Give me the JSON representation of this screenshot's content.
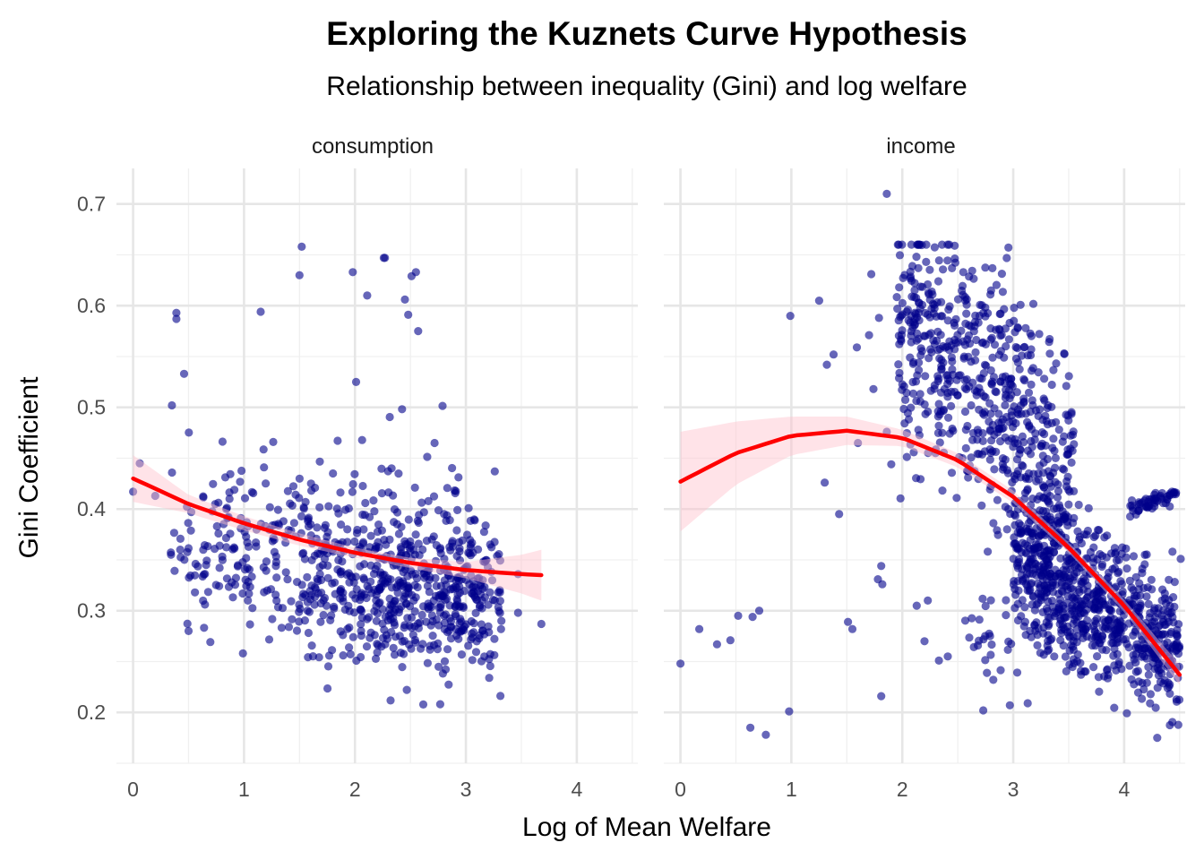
{
  "chart_data": {
    "type": "scatter",
    "title": "Exploring the Kuznets Curve Hypothesis",
    "subtitle": "Relationship between inequality (Gini) and log welfare",
    "xlabel": "Log of Mean Welfare",
    "ylabel": "Gini Coefficient",
    "ylim": [
      0.15,
      0.735
    ],
    "y_ticks": [
      0.2,
      0.3,
      0.4,
      0.5,
      0.6,
      0.7
    ],
    "y_tick_labels": [
      "0.2",
      "0.3",
      "0.4",
      "0.5",
      "0.6",
      "0.7"
    ],
    "grid": true,
    "legend": "none",
    "point_color": "#00008B",
    "point_opacity": 0.6,
    "trend_color": "#FF0000",
    "ribbon_color": "#FFC0CB",
    "panels": [
      {
        "label": "consumption",
        "xlim": [
          -0.15,
          4.55
        ],
        "x_ticks": [
          0,
          1,
          2,
          3,
          4
        ],
        "x_tick_labels": [
          "0",
          "1",
          "2",
          "3",
          "4"
        ],
        "generated_points": {
          "count": 820,
          "x_range": [
            0,
            3.7
          ],
          "description": "dense cloud between log welfare 0.3 and 3.3, Gini mostly 0.25 to 0.47"
        },
        "points": [
          {
            "x": 0.0,
            "y": 0.417
          },
          {
            "x": 0.06,
            "y": 0.445
          },
          {
            "x": 0.2,
            "y": 0.413
          },
          {
            "x": 0.35,
            "y": 0.502
          },
          {
            "x": 0.39,
            "y": 0.593
          },
          {
            "x": 0.39,
            "y": 0.587
          },
          {
            "x": 0.46,
            "y": 0.533
          },
          {
            "x": 0.5,
            "y": 0.28
          },
          {
            "x": 0.99,
            "y": 0.258
          },
          {
            "x": 1.15,
            "y": 0.594
          },
          {
            "x": 1.5,
            "y": 0.63
          },
          {
            "x": 1.52,
            "y": 0.658
          },
          {
            "x": 1.98,
            "y": 0.633
          },
          {
            "x": 2.01,
            "y": 0.525
          },
          {
            "x": 2.11,
            "y": 0.61
          },
          {
            "x": 2.26,
            "y": 0.647
          },
          {
            "x": 2.27,
            "y": 0.647
          },
          {
            "x": 2.45,
            "y": 0.606
          },
          {
            "x": 2.48,
            "y": 0.591
          },
          {
            "x": 2.51,
            "y": 0.629
          },
          {
            "x": 2.55,
            "y": 0.633
          },
          {
            "x": 2.57,
            "y": 0.575
          },
          {
            "x": 3.21,
            "y": 0.234
          },
          {
            "x": 3.26,
            "y": 0.437
          },
          {
            "x": 3.32,
            "y": 0.29
          },
          {
            "x": 3.47,
            "y": 0.298
          },
          {
            "x": 3.47,
            "y": 0.336
          },
          {
            "x": 3.68,
            "y": 0.287
          }
        ],
        "trend": {
          "x": [
            0.0,
            0.5,
            1.0,
            1.5,
            2.0,
            2.5,
            3.0,
            3.5,
            3.68
          ],
          "y": [
            0.43,
            0.405,
            0.386,
            0.37,
            0.357,
            0.347,
            0.34,
            0.336,
            0.335
          ],
          "lower": [
            0.407,
            0.396,
            0.379,
            0.364,
            0.352,
            0.342,
            0.332,
            0.317,
            0.31
          ],
          "upper": [
            0.453,
            0.414,
            0.393,
            0.376,
            0.362,
            0.352,
            0.348,
            0.355,
            0.36
          ]
        }
      },
      {
        "label": "income",
        "xlim": [
          -0.15,
          4.55
        ],
        "x_ticks": [
          0,
          1,
          2,
          3,
          4
        ],
        "x_tick_labels": [
          "0",
          "1",
          "2",
          "3",
          "4"
        ],
        "generated_points": {
          "count": 1550,
          "x_range": [
            1.9,
            4.5
          ],
          "description": "dense band falling from Gini 0.55 near log welfare 2.5 to about 0.3 near 4"
        },
        "points": [
          {
            "x": 0.0,
            "y": 0.248
          },
          {
            "x": 0.17,
            "y": 0.282
          },
          {
            "x": 0.33,
            "y": 0.267
          },
          {
            "x": 0.45,
            "y": 0.271
          },
          {
            "x": 0.52,
            "y": 0.295
          },
          {
            "x": 0.63,
            "y": 0.185
          },
          {
            "x": 0.65,
            "y": 0.294
          },
          {
            "x": 0.71,
            "y": 0.3
          },
          {
            "x": 0.77,
            "y": 0.178
          },
          {
            "x": 0.98,
            "y": 0.201
          },
          {
            "x": 0.99,
            "y": 0.59
          },
          {
            "x": 1.25,
            "y": 0.605
          },
          {
            "x": 1.3,
            "y": 0.426
          },
          {
            "x": 1.32,
            "y": 0.542
          },
          {
            "x": 1.38,
            "y": 0.552
          },
          {
            "x": 1.43,
            "y": 0.395
          },
          {
            "x": 1.51,
            "y": 0.289
          },
          {
            "x": 1.55,
            "y": 0.282
          },
          {
            "x": 1.59,
            "y": 0.559
          },
          {
            "x": 1.6,
            "y": 0.465
          },
          {
            "x": 1.7,
            "y": 0.571
          },
          {
            "x": 1.72,
            "y": 0.631
          },
          {
            "x": 1.74,
            "y": 0.518
          },
          {
            "x": 1.78,
            "y": 0.331
          },
          {
            "x": 1.79,
            "y": 0.588
          },
          {
            "x": 1.81,
            "y": 0.344
          },
          {
            "x": 1.81,
            "y": 0.216
          },
          {
            "x": 1.82,
            "y": 0.326
          },
          {
            "x": 1.86,
            "y": 0.71
          },
          {
            "x": 1.86,
            "y": 0.476
          },
          {
            "x": 1.9,
            "y": 0.444
          },
          {
            "x": 1.98,
            "y": 0.589
          },
          {
            "x": 2.13,
            "y": 0.305
          },
          {
            "x": 2.2,
            "y": 0.27
          },
          {
            "x": 2.23,
            "y": 0.31
          },
          {
            "x": 2.33,
            "y": 0.251
          },
          {
            "x": 2.41,
            "y": 0.255
          },
          {
            "x": 2.55,
            "y": 0.633
          },
          {
            "x": 2.58,
            "y": 0.601
          },
          {
            "x": 2.73,
            "y": 0.202
          },
          {
            "x": 2.82,
            "y": 0.232
          },
          {
            "x": 2.97,
            "y": 0.207
          },
          {
            "x": 3.13,
            "y": 0.209
          },
          {
            "x": 4.51,
            "y": 0.351
          }
        ],
        "trend": {
          "x": [
            0.0,
            0.5,
            1.0,
            1.5,
            2.0,
            2.5,
            3.0,
            3.5,
            4.0,
            4.5
          ],
          "y": [
            0.427,
            0.455,
            0.472,
            0.477,
            0.47,
            0.448,
            0.412,
            0.362,
            0.305,
            0.237
          ],
          "lower": [
            0.378,
            0.424,
            0.453,
            0.463,
            0.462,
            0.441,
            0.406,
            0.357,
            0.299,
            0.227
          ],
          "upper": [
            0.476,
            0.486,
            0.491,
            0.491,
            0.478,
            0.455,
            0.418,
            0.367,
            0.311,
            0.247
          ]
        }
      }
    ]
  }
}
